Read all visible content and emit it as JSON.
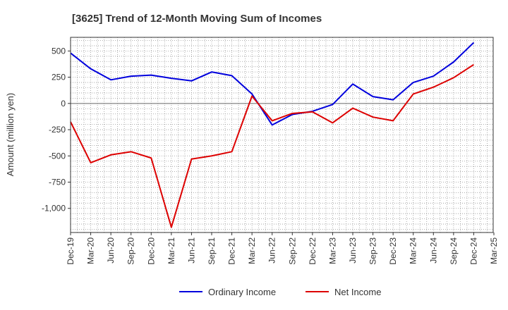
{
  "chart_data": {
    "type": "line",
    "title": "[3625]  Trend of 12-Month Moving Sum of Incomes",
    "xlabel": "",
    "ylabel": "Amount (million yen)",
    "categories": [
      "Dec-19",
      "Mar-20",
      "Jun-20",
      "Sep-20",
      "Dec-20",
      "Mar-21",
      "Jun-21",
      "Sep-21",
      "Dec-21",
      "Mar-22",
      "Jun-22",
      "Sep-22",
      "Dec-22",
      "Mar-23",
      "Jun-23",
      "Sep-23",
      "Dec-23",
      "Mar-24",
      "Jun-24",
      "Sep-24",
      "Dec-24",
      "Mar-25"
    ],
    "ylim": [
      -1230,
      630
    ],
    "yticks": [
      500,
      250,
      0,
      -250,
      -500,
      -750,
      -1000
    ],
    "ytick_labels": [
      "500",
      "250",
      "0",
      "-250",
      "-500",
      "-750",
      "-1,000"
    ],
    "grid": true,
    "legend_position": "bottom-center",
    "series": [
      {
        "name": "Ordinary Income",
        "color": "#0000dd",
        "values": [
          480,
          330,
          225,
          260,
          270,
          240,
          215,
          300,
          265,
          90,
          -205,
          -105,
          -75,
          -10,
          185,
          65,
          35,
          200,
          260,
          395,
          580,
          null
        ]
      },
      {
        "name": "Net Income",
        "color": "#dd0000",
        "values": [
          -175,
          -565,
          -490,
          -460,
          -520,
          -1180,
          -530,
          -500,
          -460,
          70,
          -165,
          -95,
          -80,
          -185,
          -45,
          -130,
          -165,
          90,
          155,
          245,
          370,
          null
        ]
      }
    ]
  }
}
